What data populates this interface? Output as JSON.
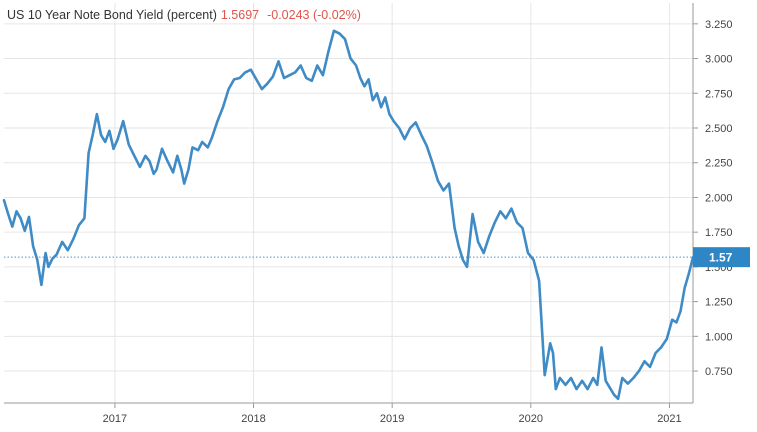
{
  "legend": {
    "name": "US 10 Year Note Bond Yield (percent)",
    "last": "1.5697",
    "change": "-0.0243 (-0.02%)"
  },
  "badge": {
    "label": "1.57",
    "value": 1.57
  },
  "colors": {
    "line": "#3f8bc6",
    "badge": "#2f86c5",
    "legend_change": "#e0544b",
    "grid": "#e6e6e6"
  },
  "chart_data": {
    "type": "line",
    "title": "US 10 Year Note Bond Yield (percent)",
    "xlabel": "",
    "ylabel": "",
    "x_range": [
      2016.2,
      2021.17
    ],
    "ylim": [
      0.52,
      3.4
    ],
    "x_ticks": [
      {
        "label": "2017",
        "value": 2017
      },
      {
        "label": "2018",
        "value": 2018
      },
      {
        "label": "2019",
        "value": 2019
      },
      {
        "label": "2020",
        "value": 2020
      },
      {
        "label": "2021",
        "value": 2021
      }
    ],
    "y_ticks": [
      {
        "label": "0.750",
        "value": 0.75
      },
      {
        "label": "1.000",
        "value": 1.0
      },
      {
        "label": "1.250",
        "value": 1.25
      },
      {
        "label": "1.500",
        "value": 1.5
      },
      {
        "label": "1.750",
        "value": 1.75
      },
      {
        "label": "2.000",
        "value": 2.0
      },
      {
        "label": "2.250",
        "value": 2.25
      },
      {
        "label": "2.500",
        "value": 2.5
      },
      {
        "label": "2.750",
        "value": 2.75
      },
      {
        "label": "3.000",
        "value": 3.0
      },
      {
        "label": "3.250",
        "value": 3.25
      }
    ],
    "grid": true,
    "series": [
      {
        "x": [
          2016.2,
          2016.23,
          2016.26,
          2016.29,
          2016.32,
          2016.35,
          2016.38,
          2016.41,
          2016.44,
          2016.47,
          2016.5,
          2016.52,
          2016.55,
          2016.58,
          2016.62,
          2016.66,
          2016.7,
          2016.74,
          2016.78,
          2016.81,
          2016.84,
          2016.87,
          2016.9,
          2016.93,
          2016.96,
          2016.99,
          2017.02,
          2017.06,
          2017.1,
          2017.14,
          2017.18,
          2017.22,
          2017.25,
          2017.28,
          2017.3,
          2017.34,
          2017.38,
          2017.42,
          2017.45,
          2017.48,
          2017.5,
          2017.53,
          2017.56,
          2017.6,
          2017.63,
          2017.67,
          2017.7,
          2017.74,
          2017.78,
          2017.82,
          2017.86,
          2017.9,
          2017.94,
          2017.98,
          2018.02,
          2018.06,
          2018.1,
          2018.14,
          2018.18,
          2018.22,
          2018.26,
          2018.3,
          2018.34,
          2018.38,
          2018.42,
          2018.46,
          2018.5,
          2018.54,
          2018.58,
          2018.62,
          2018.66,
          2018.7,
          2018.74,
          2018.77,
          2018.8,
          2018.83,
          2018.86,
          2018.89,
          2018.92,
          2018.95,
          2018.98,
          2019.01,
          2019.05,
          2019.09,
          2019.13,
          2019.17,
          2019.21,
          2019.25,
          2019.29,
          2019.33,
          2019.37,
          2019.41,
          2019.45,
          2019.48,
          2019.51,
          2019.54,
          2019.58,
          2019.62,
          2019.66,
          2019.7,
          2019.74,
          2019.78,
          2019.82,
          2019.86,
          2019.9,
          2019.94,
          2019.98,
          2020.02,
          2020.06,
          2020.1,
          2020.14,
          2020.16,
          2020.18,
          2020.21,
          2020.25,
          2020.29,
          2020.33,
          2020.37,
          2020.41,
          2020.45,
          2020.48,
          2020.51,
          2020.54,
          2020.57,
          2020.6,
          2020.63,
          2020.66,
          2020.7,
          2020.74,
          2020.78,
          2020.82,
          2020.86,
          2020.9,
          2020.94,
          2020.98,
          2021.02,
          2021.05,
          2021.08,
          2021.11,
          2021.14,
          2021.17
        ],
        "y": [
          1.98,
          1.88,
          1.79,
          1.9,
          1.85,
          1.76,
          1.86,
          1.65,
          1.55,
          1.37,
          1.6,
          1.5,
          1.56,
          1.59,
          1.68,
          1.62,
          1.7,
          1.8,
          1.85,
          2.32,
          2.45,
          2.6,
          2.45,
          2.4,
          2.48,
          2.35,
          2.42,
          2.55,
          2.38,
          2.3,
          2.22,
          2.3,
          2.26,
          2.17,
          2.2,
          2.35,
          2.26,
          2.18,
          2.3,
          2.2,
          2.1,
          2.2,
          2.36,
          2.34,
          2.4,
          2.36,
          2.43,
          2.55,
          2.65,
          2.78,
          2.85,
          2.86,
          2.9,
          2.92,
          2.85,
          2.78,
          2.82,
          2.87,
          2.98,
          2.86,
          2.88,
          2.9,
          2.95,
          2.86,
          2.84,
          2.95,
          2.88,
          3.05,
          3.2,
          3.18,
          3.14,
          3.0,
          2.95,
          2.86,
          2.8,
          2.85,
          2.7,
          2.75,
          2.65,
          2.72,
          2.6,
          2.55,
          2.5,
          2.42,
          2.5,
          2.54,
          2.45,
          2.37,
          2.25,
          2.12,
          2.05,
          2.1,
          1.78,
          1.65,
          1.55,
          1.5,
          1.88,
          1.68,
          1.6,
          1.72,
          1.82,
          1.9,
          1.85,
          1.92,
          1.82,
          1.78,
          1.6,
          1.55,
          1.4,
          0.72,
          0.95,
          0.88,
          0.62,
          0.7,
          0.65,
          0.7,
          0.62,
          0.68,
          0.62,
          0.7,
          0.65,
          0.92,
          0.68,
          0.63,
          0.58,
          0.55,
          0.7,
          0.66,
          0.7,
          0.75,
          0.82,
          0.78,
          0.88,
          0.92,
          0.98,
          1.12,
          1.1,
          1.18,
          1.35,
          1.45,
          1.57
        ]
      }
    ]
  }
}
